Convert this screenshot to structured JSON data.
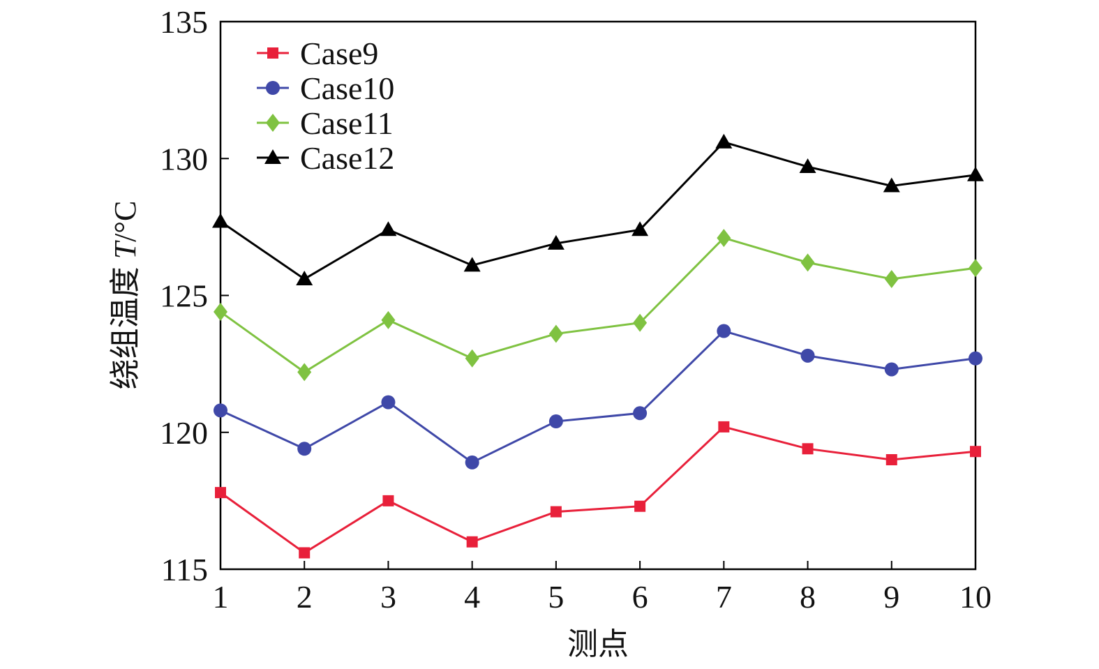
{
  "chart_data": {
    "type": "line",
    "title": "",
    "xlabel": "测点",
    "ylabel_main": "绕组温度 ",
    "ylabel_var": "T",
    "ylabel_unit": "/°C",
    "x": [
      1,
      2,
      3,
      4,
      5,
      6,
      7,
      8,
      9,
      10
    ],
    "x_tick_labels": [
      "1",
      "2",
      "3",
      "4",
      "5",
      "6",
      "7",
      "8",
      "9",
      "10"
    ],
    "xlim": [
      1,
      10
    ],
    "ylim": [
      115,
      135
    ],
    "y_tick_labels": [
      "115",
      "120",
      "125",
      "130",
      "135"
    ],
    "y_ticks": [
      115,
      120,
      125,
      130,
      135
    ],
    "grid": false,
    "legend_position": "top-left",
    "series": [
      {
        "name": "Case9",
        "color": "#e8203a",
        "marker": "square",
        "values": [
          117.8,
          115.6,
          117.5,
          116.0,
          117.1,
          117.3,
          120.2,
          119.4,
          119.0,
          119.3
        ]
      },
      {
        "name": "Case10",
        "color": "#3f48a8",
        "marker": "circle",
        "values": [
          120.8,
          119.4,
          121.1,
          118.9,
          120.4,
          120.7,
          123.7,
          122.8,
          122.3,
          122.7
        ]
      },
      {
        "name": "Case11",
        "color": "#7fc241",
        "marker": "diamond",
        "values": [
          124.4,
          122.2,
          124.1,
          122.7,
          123.6,
          124.0,
          127.1,
          126.2,
          125.6,
          126.0
        ]
      },
      {
        "name": "Case12",
        "color": "#000000",
        "marker": "triangle",
        "values": [
          127.7,
          125.6,
          127.4,
          126.1,
          126.9,
          127.4,
          130.6,
          129.7,
          129.0,
          129.4
        ]
      }
    ]
  }
}
